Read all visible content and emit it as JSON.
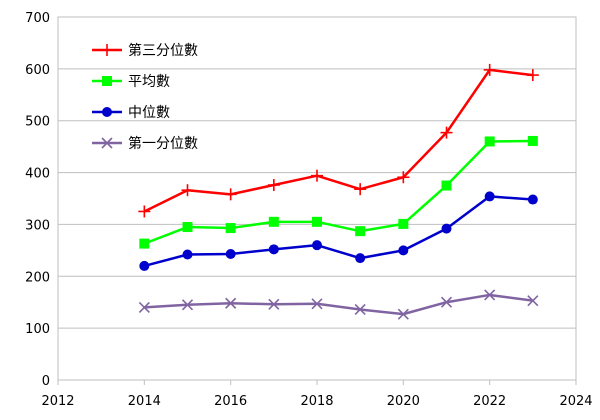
{
  "chart_data": {
    "type": "line",
    "title": "",
    "xlabel": "",
    "ylabel": "",
    "xlim": [
      2012,
      2024
    ],
    "ylim": [
      0,
      700
    ],
    "x_ticks": [
      2012,
      2014,
      2016,
      2018,
      2020,
      2022,
      2024
    ],
    "y_ticks": [
      0,
      100,
      200,
      300,
      400,
      500,
      600,
      700
    ],
    "grid": "horizontal",
    "legend_position": "top-left",
    "x": [
      2014,
      2015,
      2016,
      2017,
      2018,
      2019,
      2020,
      2021,
      2022,
      2023
    ],
    "series": [
      {
        "name": "第三分位數",
        "color": "#ff0000",
        "marker": "plus",
        "values": [
          325,
          366,
          358,
          376,
          394,
          368,
          391,
          477,
          598,
          588
        ]
      },
      {
        "name": "平均數",
        "color": "#00ff00",
        "marker": "square",
        "values": [
          263,
          295,
          293,
          305,
          305,
          287,
          301,
          375,
          460,
          461
        ]
      },
      {
        "name": "中位數",
        "color": "#0000cc",
        "marker": "circle",
        "values": [
          220,
          242,
          243,
          252,
          260,
          235,
          250,
          292,
          354,
          348
        ]
      },
      {
        "name": "第一分位數",
        "color": "#8064a2",
        "marker": "x",
        "values": [
          140,
          145,
          148,
          146,
          147,
          136,
          127,
          150,
          164,
          153
        ]
      }
    ]
  }
}
